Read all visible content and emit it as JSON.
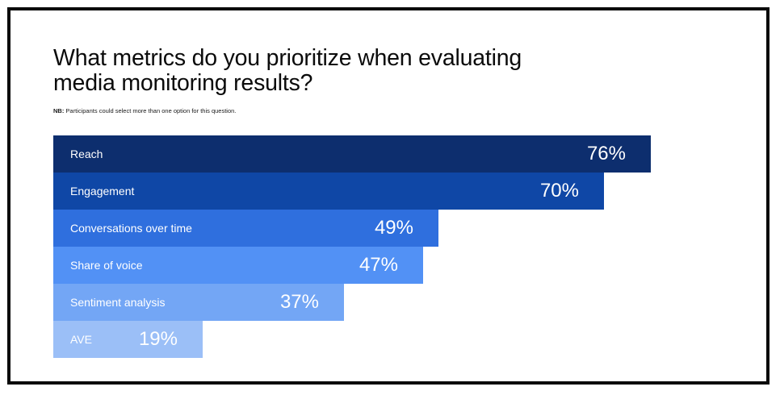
{
  "title": "What metrics do you prioritize when evaluating media monitoring results?",
  "note": {
    "lead": "NB:",
    "text": " Participants could select more than one option for this question."
  },
  "chart_data": {
    "type": "bar",
    "orientation": "horizontal",
    "title": "What metrics do you prioritize when evaluating media monitoring results?",
    "unit": "%",
    "categories": [
      "Reach",
      "Engagement",
      "Conversations over time",
      "Share of voice",
      "Sentiment analysis",
      "AVE"
    ],
    "values": [
      76,
      70,
      49,
      47,
      37,
      19
    ],
    "value_labels": [
      "76%",
      "70%",
      "49%",
      "47%",
      "37%",
      "19%"
    ],
    "colors": [
      "#0d2e6e",
      "#0f47a6",
      "#2f6fde",
      "#5291f5",
      "#73a6f5",
      "#9bbff7"
    ],
    "grid": false,
    "legend": "none"
  }
}
